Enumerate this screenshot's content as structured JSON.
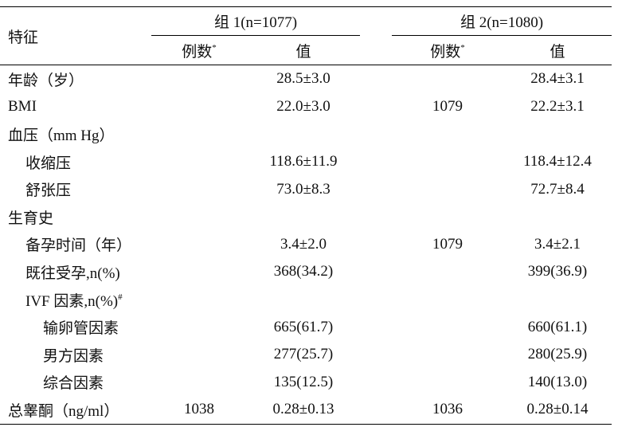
{
  "header": {
    "characteristic": "特征",
    "groups": [
      {
        "title": "组 1(n=1077)",
        "count": {
          "text": "例数",
          "mark": "*"
        },
        "value": "值"
      },
      {
        "title": "组 2(n=1080)",
        "count": {
          "text": "例数",
          "mark": "*"
        },
        "value": "值"
      }
    ]
  },
  "rows": [
    {
      "label": "年龄（岁）",
      "g1_value": "28.5±3.0",
      "g2_value": "28.4±3.1"
    },
    {
      "label": "BMI",
      "g1_value": "22.0±3.0",
      "g2_count": "1079",
      "g2_value": "22.2±3.1"
    },
    {
      "label": "血压（mm Hg）",
      "children": [
        {
          "label": "收缩压",
          "g1_value": "118.6±11.9",
          "g2_value": "118.4±12.4"
        },
        {
          "label": "舒张压",
          "g1_value": "73.0±8.3",
          "g2_value": "72.7±8.4"
        }
      ]
    },
    {
      "label": "生育史",
      "children": [
        {
          "label": "备孕时间（年）",
          "g1_value": "3.4±2.0",
          "g2_count": "1079",
          "g2_value": "3.4±2.1"
        },
        {
          "label": "既往受孕,n(%)",
          "g1_value": "368(34.2)",
          "g2_value": "399(36.9)"
        },
        {
          "label": "IVF 因素,n(%)",
          "mark": "#",
          "children": [
            {
              "label": "输卵管因素",
              "g1_value": "665(61.7)",
              "g2_value": "660(61.1)"
            },
            {
              "label": "男方因素",
              "g1_value": "277(25.7)",
              "g2_value": "280(25.9)"
            },
            {
              "label": "综合因素",
              "g1_value": "135(12.5)",
              "g2_value": "140(13.0)"
            }
          ]
        }
      ]
    },
    {
      "label": "总睾酮（ng/ml）",
      "g1_count": "1038",
      "g1_value": "0.28±0.13",
      "g2_count": "1036",
      "g2_value": "0.28±0.14"
    }
  ]
}
